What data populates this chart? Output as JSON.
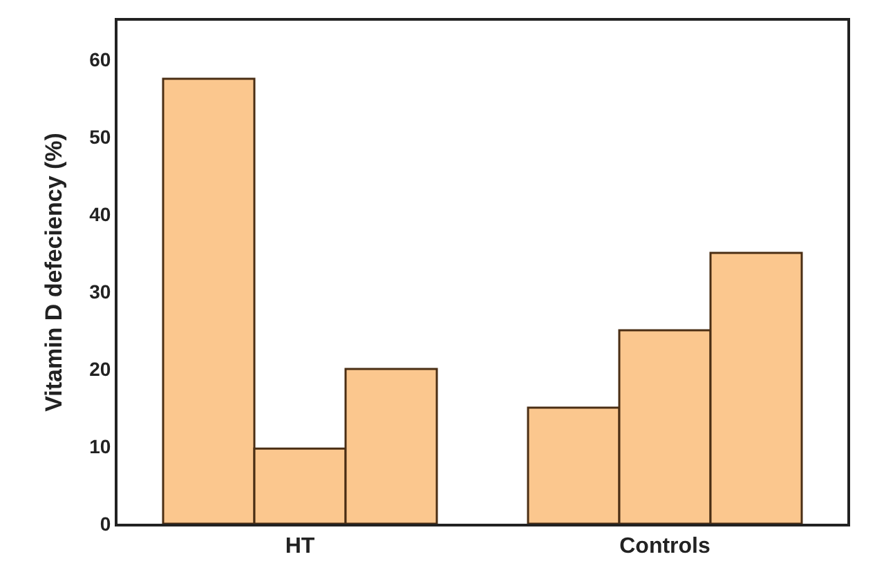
{
  "chart_data": {
    "type": "bar",
    "ylabel": "Vitamin D defeciency (%)",
    "categories": [
      "HT",
      "Controls"
    ],
    "series": [
      {
        "color": "#fbc78e",
        "values": [
          57.5,
          15
        ]
      },
      {
        "color": "#fbc78e",
        "values": [
          9.7,
          25
        ]
      },
      {
        "color": "#fbc78e",
        "values": [
          20,
          35
        ]
      }
    ],
    "ylim": [
      0,
      65
    ],
    "yticks": [
      0,
      10,
      20,
      30,
      40,
      50,
      60
    ]
  }
}
